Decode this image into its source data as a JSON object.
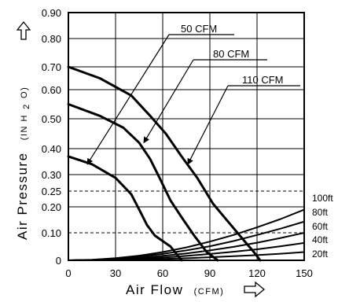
{
  "chart_data": {
    "type": "line",
    "xlabel": "Air Flow",
    "xunit": "(CFM)",
    "ylabel": "Air Pressure",
    "yunit": "(IN H",
    "yunit_sub": "2",
    "yunit_tail": "O)",
    "xlim": [
      0,
      150
    ],
    "ylim": [
      0,
      0.9
    ],
    "x_ticks": [
      0,
      30,
      60,
      90,
      120,
      150
    ],
    "x_tick_labels": [
      "0",
      "30",
      "60",
      "90",
      "120",
      "150"
    ],
    "y_ticks": [
      0,
      0.1,
      0.2,
      0.25,
      0.3,
      0.4,
      0.5,
      0.6,
      0.7,
      0.8,
      0.9
    ],
    "y_tick_labels": [
      "0",
      "0.10",
      "0.20",
      "0.25",
      "0.30",
      "0.40",
      "0.50",
      "0.60",
      "0.70",
      "0.80",
      "0.90"
    ],
    "y_scale": "piecewise",
    "grid": true,
    "dashed_lines_y": [
      0.25,
      0.1
    ],
    "arrow_up_icon": "outline-up-arrow",
    "arrow_right_icon": "outline-right-arrow",
    "fan_curves": [
      {
        "name": "50 CFM",
        "points": [
          [
            0,
            0.37
          ],
          [
            15,
            0.34
          ],
          [
            30,
            0.29
          ],
          [
            40,
            0.24
          ],
          [
            45,
            0.19
          ],
          [
            50,
            0.13
          ],
          [
            55,
            0.09
          ],
          [
            65,
            0.05
          ],
          [
            72,
            0.0
          ]
        ]
      },
      {
        "name": "80 CFM",
        "points": [
          [
            0,
            0.55
          ],
          [
            20,
            0.51
          ],
          [
            35,
            0.47
          ],
          [
            45,
            0.42
          ],
          [
            52,
            0.36
          ],
          [
            58,
            0.29
          ],
          [
            65,
            0.22
          ],
          [
            72,
            0.16
          ],
          [
            80,
            0.09
          ],
          [
            88,
            0.03
          ],
          [
            95,
            0.0
          ]
        ]
      },
      {
        "name": "110 CFM",
        "points": [
          [
            0,
            0.7
          ],
          [
            20,
            0.65
          ],
          [
            40,
            0.58
          ],
          [
            52,
            0.51
          ],
          [
            62,
            0.45
          ],
          [
            72,
            0.37
          ],
          [
            82,
            0.29
          ],
          [
            92,
            0.21
          ],
          [
            102,
            0.14
          ],
          [
            112,
            0.07
          ],
          [
            118,
            0.03
          ],
          [
            122,
            0.0
          ]
        ]
      }
    ],
    "system_curves": [
      {
        "name": "100ft",
        "points": [
          [
            0,
            0.0
          ],
          [
            15,
            0.002
          ],
          [
            30,
            0.008
          ],
          [
            45,
            0.017
          ],
          [
            60,
            0.03
          ],
          [
            75,
            0.047
          ],
          [
            90,
            0.068
          ],
          [
            105,
            0.092
          ],
          [
            120,
            0.121
          ],
          [
            135,
            0.153
          ],
          [
            150,
            0.189
          ]
        ]
      },
      {
        "name": "80ft",
        "points": [
          [
            0,
            0.0
          ],
          [
            15,
            0.0015
          ],
          [
            30,
            0.006
          ],
          [
            45,
            0.013
          ],
          [
            60,
            0.023
          ],
          [
            75,
            0.036
          ],
          [
            90,
            0.051
          ],
          [
            105,
            0.07
          ],
          [
            120,
            0.092
          ],
          [
            135,
            0.116
          ],
          [
            150,
            0.143
          ]
        ]
      },
      {
        "name": "60ft",
        "points": [
          [
            0,
            0.0
          ],
          [
            15,
            0.001
          ],
          [
            30,
            0.004
          ],
          [
            45,
            0.009
          ],
          [
            60,
            0.016
          ],
          [
            75,
            0.025
          ],
          [
            90,
            0.036
          ],
          [
            105,
            0.049
          ],
          [
            120,
            0.064
          ],
          [
            135,
            0.081
          ],
          [
            150,
            0.1
          ]
        ]
      },
      {
        "name": "40ft",
        "points": [
          [
            0,
            0.0
          ],
          [
            15,
            0.0006
          ],
          [
            30,
            0.0025
          ],
          [
            45,
            0.0056
          ],
          [
            60,
            0.01
          ],
          [
            75,
            0.016
          ],
          [
            90,
            0.023
          ],
          [
            105,
            0.031
          ],
          [
            120,
            0.04
          ],
          [
            135,
            0.051
          ],
          [
            150,
            0.063
          ]
        ]
      },
      {
        "name": "20ft",
        "points": [
          [
            0,
            0.0
          ],
          [
            15,
            0.0003
          ],
          [
            30,
            0.0012
          ],
          [
            45,
            0.0027
          ],
          [
            60,
            0.0048
          ],
          [
            75,
            0.0075
          ],
          [
            90,
            0.011
          ],
          [
            105,
            0.015
          ],
          [
            120,
            0.019
          ],
          [
            135,
            0.024
          ],
          [
            150,
            0.03
          ]
        ]
      }
    ],
    "callouts": [
      {
        "label": "50 CFM",
        "target": [
          12,
          0.34
        ]
      },
      {
        "label": "80 CFM",
        "target": [
          48,
          0.42
        ]
      },
      {
        "label": "110 CFM",
        "target": [
          76,
          0.34
        ]
      }
    ]
  }
}
